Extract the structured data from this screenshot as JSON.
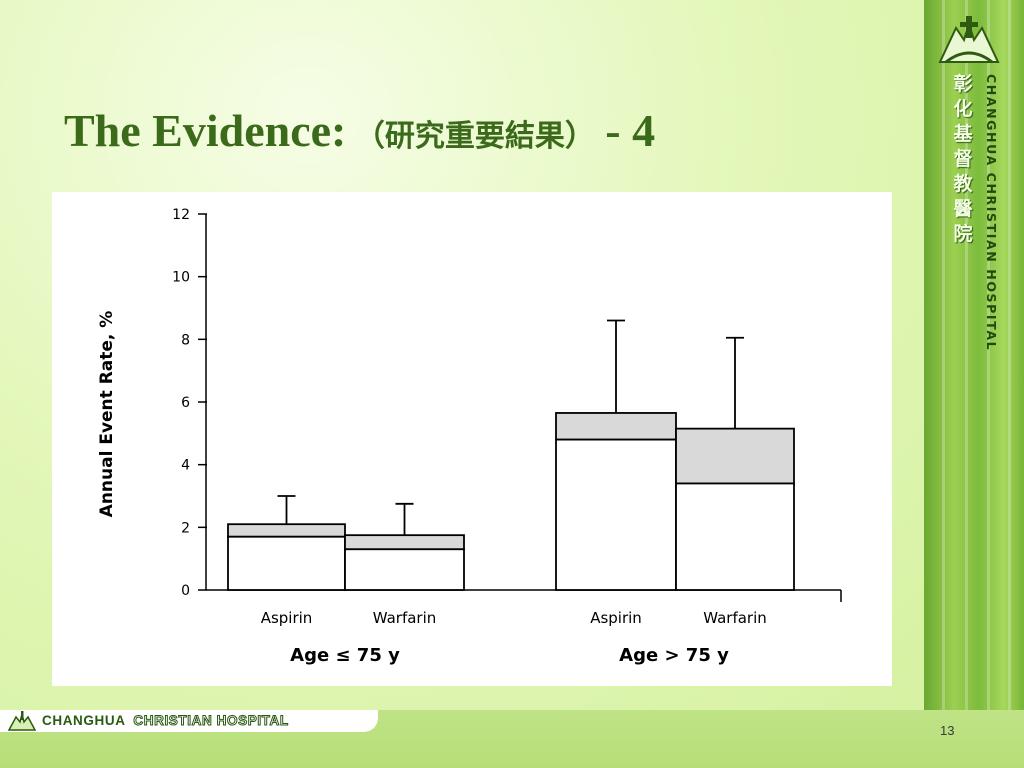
{
  "slide": {
    "title_en": "The Evidence:",
    "title_zh": "（研究重要結果）",
    "title_suffix": "- 4",
    "page_number": "13"
  },
  "branding": {
    "side_chinese": [
      "彰",
      "化",
      "基",
      "督",
      "教",
      "醫",
      "院"
    ],
    "side_english": "CHANGHUA CHRISTIAN HOSPITAL",
    "footer_name_1": "CHANGHUA",
    "footer_name_2": "CHRISTIAN HOSPITAL",
    "brand_green": "#3b6a1a"
  },
  "chart_data": {
    "type": "bar",
    "ylabel": "Annual Event Rate, %",
    "xlabel": "",
    "ylim": [
      0,
      12
    ],
    "yticks": [
      0,
      2,
      4,
      6,
      8,
      10,
      12
    ],
    "groups": [
      {
        "label": "Age ≤ 75 y",
        "categories": [
          "Aspirin",
          "Warfarin"
        ]
      },
      {
        "label": "Age > 75 y",
        "categories": [
          "Aspirin",
          "Warfarin"
        ]
      }
    ],
    "bars": [
      {
        "group": 0,
        "category": "Aspirin",
        "lower": 1.7,
        "total": 2.1,
        "error_upper": 3.0
      },
      {
        "group": 0,
        "category": "Warfarin",
        "lower": 1.3,
        "total": 1.75,
        "error_upper": 2.75
      },
      {
        "group": 1,
        "category": "Aspirin",
        "lower": 4.8,
        "total": 5.65,
        "error_upper": 8.6
      },
      {
        "group": 1,
        "category": "Warfarin",
        "lower": 3.4,
        "total": 5.15,
        "error_upper": 8.05
      }
    ],
    "colors": {
      "lower": "#ffffff",
      "upper": "#d9d9d9",
      "stroke": "#000000"
    },
    "grid": false,
    "legend": "none"
  }
}
